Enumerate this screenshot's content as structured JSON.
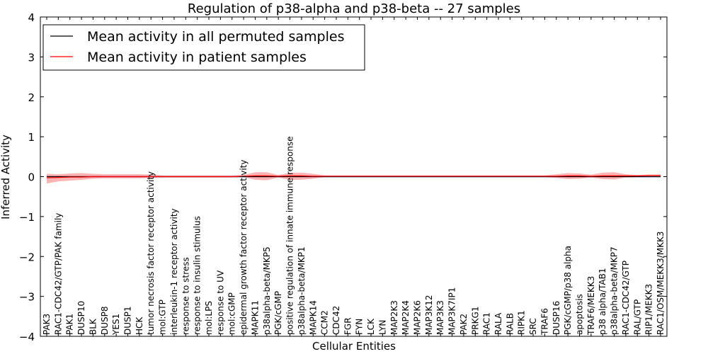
{
  "chart_data": {
    "type": "line",
    "title": "Regulation of p38-alpha and p38-beta -- 27 samples",
    "xlabel": "Cellular Entities",
    "ylabel": "Inferred Activity",
    "ylim": [
      -4,
      4
    ],
    "yticks": [
      -4,
      -3,
      -2,
      -1,
      0,
      1,
      2,
      3,
      4
    ],
    "ytick_labels": [
      "−4",
      "−3",
      "−2",
      "−1",
      "0",
      "1",
      "2",
      "3",
      "4"
    ],
    "legend_position": "top-left",
    "grid": false,
    "colors": {
      "permuted": "#000000",
      "patient": "#ff0000",
      "patient_band": "#ff8080",
      "permuted_band": "#c8c8e6"
    },
    "categories": [
      "PAK3",
      "RAC1-CDC42/GTP/PAK family",
      "PAK1",
      "DUSP10",
      "BLK",
      "DUSP8",
      "YES1",
      "DUSP1",
      "HCK",
      "tumor necrosis factor receptor activity",
      "mol:GTP",
      "interleukin-1 receptor activity",
      "response to stress",
      "response to insulin stimulus",
      "mol:LPS",
      "response to UV",
      "mol:cGMP",
      "epidermal growth factor receptor activity",
      "MAPK11",
      "p38alpha-beta/MKP5",
      "PGK/cGMP",
      "positive regulation of innate immune response",
      "p38alpha-beta/MKP1",
      "MAPK14",
      "CCM2",
      "CDC42",
      "FGR",
      "FYN",
      "LCK",
      "LYN",
      "MAP2K3",
      "MAP2K4",
      "MAP2K6",
      "MAP3K12",
      "MAP3K3",
      "MAP3K7IP1",
      "PAK2",
      "PRKG1",
      "RAC1",
      "RALA",
      "RALB",
      "RIPK1",
      "SRC",
      "TRAF6",
      "DUSP16",
      "PGK/cGMP/p38 alpha",
      "apoptosis",
      "TRAF6/MEKK3",
      "p38 alpha/TAB1",
      "p38alpha-beta/MKP7",
      "RAC1-CDC42/GTP",
      "RAL/GTP",
      "RIP1/MEKK3",
      "RAC1/OSM/MEKK3/MKK3"
    ],
    "series": [
      {
        "name": "Mean activity in all permuted samples",
        "values": [
          0,
          0,
          0,
          0,
          0,
          0,
          0,
          0,
          0,
          0,
          0,
          0,
          0,
          0,
          0,
          0,
          0,
          0,
          0,
          0,
          0,
          0,
          0,
          0,
          0,
          0,
          0,
          0,
          0,
          0,
          0,
          0,
          0,
          0,
          0,
          0,
          0,
          0,
          0,
          0,
          0,
          0,
          0,
          0,
          0,
          0,
          0,
          0,
          0,
          0,
          0,
          0,
          0,
          0
        ],
        "lower": [
          -0.03,
          -0.03,
          -0.03,
          -0.03,
          -0.03,
          -0.03,
          -0.03,
          -0.03,
          -0.03,
          -0.03,
          -0.03,
          -0.03,
          -0.03,
          -0.03,
          -0.03,
          -0.03,
          -0.03,
          -0.03,
          -0.03,
          -0.03,
          -0.03,
          -0.03,
          -0.03,
          -0.03,
          -0.03,
          -0.03,
          -0.03,
          -0.03,
          -0.03,
          -0.03,
          -0.03,
          -0.03,
          -0.03,
          -0.03,
          -0.03,
          -0.03,
          -0.03,
          -0.03,
          -0.03,
          -0.03,
          -0.03,
          -0.03,
          -0.03,
          -0.03,
          -0.03,
          -0.03,
          -0.03,
          -0.03,
          -0.03,
          -0.03,
          -0.03,
          -0.03,
          -0.03,
          -0.03
        ],
        "upper": [
          0.03,
          0.03,
          0.03,
          0.03,
          0.03,
          0.03,
          0.03,
          0.03,
          0.03,
          0.03,
          0.03,
          0.03,
          0.03,
          0.03,
          0.03,
          0.03,
          0.03,
          0.03,
          0.03,
          0.03,
          0.03,
          0.03,
          0.03,
          0.03,
          0.03,
          0.03,
          0.03,
          0.03,
          0.03,
          0.03,
          0.03,
          0.03,
          0.03,
          0.03,
          0.03,
          0.03,
          0.03,
          0.03,
          0.03,
          0.03,
          0.03,
          0.03,
          0.03,
          0.03,
          0.03,
          0.03,
          0.03,
          0.03,
          0.03,
          0.03,
          0.03,
          0.03,
          0.03,
          0.03
        ]
      },
      {
        "name": "Mean activity in patient samples",
        "values": [
          -0.03,
          -0.02,
          -0.01,
          -0.01,
          0,
          0,
          0,
          0,
          0,
          0,
          0,
          0,
          0,
          0,
          0,
          0,
          0,
          0.01,
          0.02,
          0.02,
          0.01,
          0.02,
          0.02,
          0.01,
          0.01,
          0.01,
          0.01,
          0.01,
          0.01,
          0.01,
          0.01,
          0.01,
          0.01,
          0.01,
          0.01,
          0.01,
          0.01,
          0.01,
          0.01,
          0.01,
          0.01,
          0.01,
          0.01,
          0.01,
          0.01,
          0.02,
          0.02,
          0.01,
          0.02,
          0.02,
          0.02,
          0.02,
          0.03,
          0.03
        ],
        "lower": [
          -0.17,
          -0.12,
          -0.1,
          -0.08,
          -0.05,
          -0.04,
          -0.04,
          -0.04,
          -0.04,
          -0.03,
          -0.02,
          -0.02,
          -0.02,
          -0.02,
          -0.02,
          -0.02,
          -0.02,
          -0.01,
          -0.08,
          -0.09,
          -0.02,
          -0.08,
          -0.08,
          -0.05,
          -0.01,
          -0.01,
          -0.01,
          -0.01,
          -0.01,
          -0.01,
          -0.01,
          -0.01,
          -0.01,
          -0.01,
          -0.01,
          -0.01,
          -0.01,
          -0.01,
          -0.01,
          -0.01,
          -0.01,
          -0.01,
          -0.01,
          -0.01,
          -0.03,
          -0.06,
          -0.05,
          -0.02,
          -0.06,
          -0.07,
          -0.02,
          -0.01,
          0.01,
          0.01
        ],
        "upper": [
          0.07,
          0.06,
          0.08,
          0.09,
          0.07,
          0.06,
          0.06,
          0.06,
          0.06,
          0.05,
          0.03,
          0.03,
          0.03,
          0.03,
          0.03,
          0.03,
          0.03,
          0.04,
          0.11,
          0.11,
          0.04,
          0.1,
          0.1,
          0.07,
          0.03,
          0.03,
          0.03,
          0.03,
          0.03,
          0.03,
          0.03,
          0.03,
          0.03,
          0.03,
          0.03,
          0.03,
          0.03,
          0.03,
          0.03,
          0.03,
          0.03,
          0.03,
          0.03,
          0.03,
          0.06,
          0.09,
          0.08,
          0.05,
          0.1,
          0.11,
          0.06,
          0.04,
          0.05,
          0.05
        ]
      }
    ]
  }
}
